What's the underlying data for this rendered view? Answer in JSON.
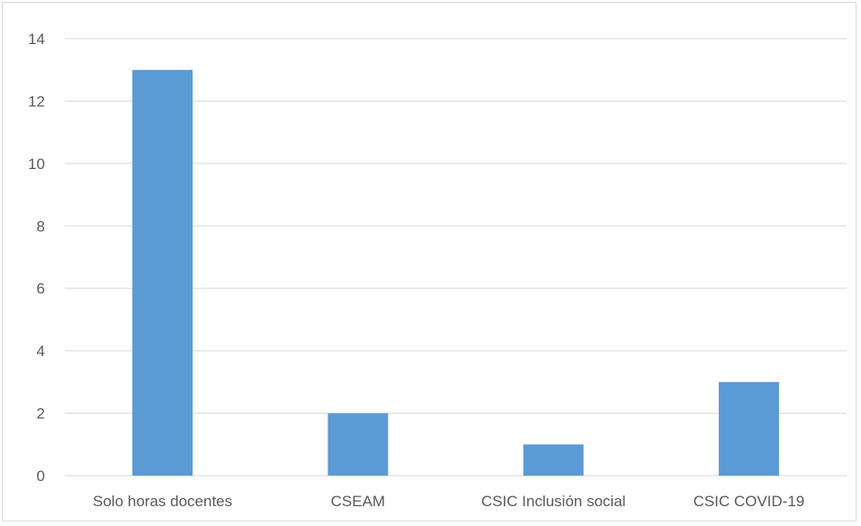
{
  "chart_data": {
    "type": "bar",
    "categories": [
      "Solo horas docentes",
      "CSEAM",
      "CSIC Inclusión social",
      "CSIC COVID-19"
    ],
    "values": [
      13,
      2,
      1,
      3
    ],
    "title": "",
    "xlabel": "",
    "ylabel": "",
    "ylim": [
      0,
      14
    ],
    "yticks": [
      0,
      2,
      4,
      6,
      8,
      10,
      12,
      14
    ],
    "grid": true,
    "legend": "none",
    "bar_color": "#5b9bd5",
    "grid_color": "#d9d9d9",
    "text_color": "#595959"
  }
}
